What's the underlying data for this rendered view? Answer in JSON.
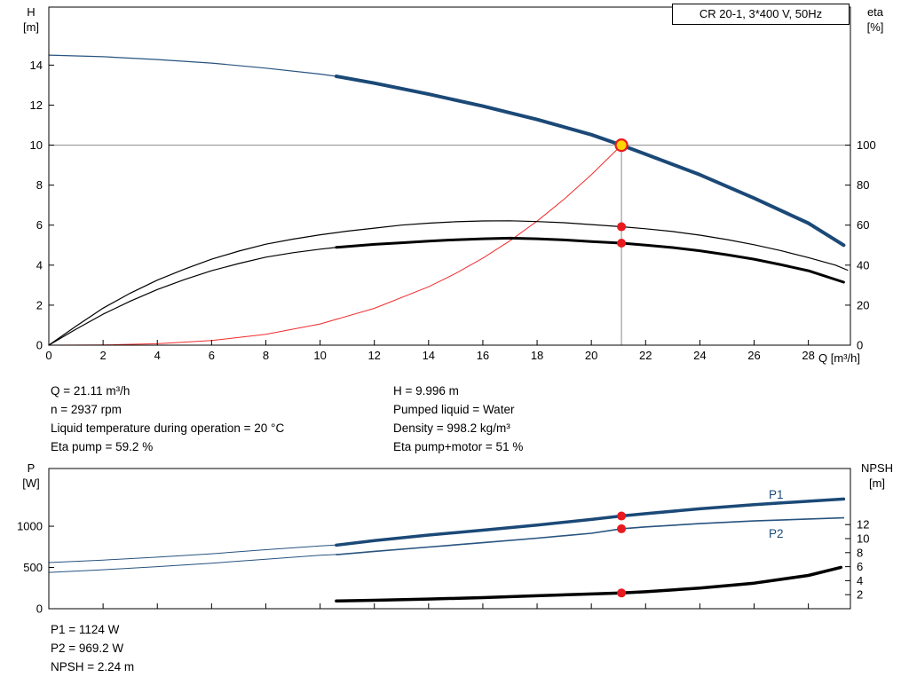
{
  "title_box": "CR 20-1, 3*400 V, 50Hz",
  "colors": {
    "curve_blue": "#1b4977",
    "curve_blue_thin": "#27537f",
    "curve_black": "#000000",
    "curve_red": "#ef2b2d",
    "duty_yellow": "#ffd400",
    "dot_red": "#e8191f",
    "guide_gray": "#8a8a8a"
  },
  "axis_labels": {
    "top_left_1": "H",
    "top_left_2": "[m]",
    "top_right_1": "eta",
    "top_right_2": "[%]",
    "x": "Q [m³/h]",
    "bottom_left_1": "P",
    "bottom_left_2": "[W]",
    "bottom_right_1": "NPSH",
    "bottom_right_2": "[m]"
  },
  "info": {
    "left": [
      "Q = 21.11 m³/h",
      "n = 2937 rpm",
      "Liquid temperature during operation = 20 °C",
      "Eta pump = 59.2 %"
    ],
    "right": [
      "H = 9.996 m",
      "Pumped liquid = Water",
      "Density = 998.2 kg/m³",
      "Eta pump+motor = 51 %"
    ],
    "bottom": [
      "P1 = 1124 W",
      "P2 = 969.2 W",
      "NPSH = 2.24 m"
    ]
  },
  "chart_data": [
    {
      "type": "line",
      "name": "head-and-efficiency-chart",
      "title": "CR 20-1, 3*400 V, 50Hz",
      "xlabel": "Q [m³/h]",
      "ylabel_left": "H [m]",
      "ylabel_right": "eta [%]",
      "xlim": [
        0,
        29.55
      ],
      "ylim_left": [
        0,
        16.9
      ],
      "ylim_right": [
        0,
        169
      ],
      "x_ticks": [
        0,
        2,
        4,
        6,
        8,
        10,
        12,
        14,
        16,
        18,
        20,
        22,
        24,
        26,
        28
      ],
      "x_tick_labels": true,
      "y_ticks_left": [
        0,
        2,
        4,
        6,
        8,
        10,
        12,
        14
      ],
      "y_ticks_right": [
        0,
        20,
        40,
        60,
        80,
        100
      ],
      "guides": [
        {
          "type": "h",
          "value": 9.996,
          "color": "#8a8a8a"
        },
        {
          "type": "v",
          "q": 21.11,
          "from": 0,
          "to": 9.996,
          "color": "#8a8a8a"
        }
      ],
      "series": [
        {
          "id": "qh-curve-full",
          "name": "Q-H curve full range",
          "axis": "left",
          "color": "#27537f",
          "width": 1.2,
          "points": [
            [
              0,
              14.5
            ],
            [
              2,
              14.42
            ],
            [
              4,
              14.28
            ],
            [
              6,
              14.1
            ],
            [
              8,
              13.85
            ],
            [
              10,
              13.55
            ],
            [
              10.6,
              13.44
            ],
            [
              12,
              13.1
            ],
            [
              14,
              12.55
            ],
            [
              16,
              11.95
            ],
            [
              18,
              11.28
            ],
            [
              20,
              10.52
            ],
            [
              21.11,
              9.996
            ],
            [
              22,
              9.55
            ],
            [
              24,
              8.52
            ],
            [
              26,
              7.35
            ],
            [
              28,
              6.1
            ],
            [
              29.3,
              5.0
            ]
          ]
        },
        {
          "id": "qh-curve-selected",
          "name": "Q-H curve selected range",
          "axis": "left",
          "color": "#1b4977",
          "width": 4,
          "points": [
            [
              10.6,
              13.44
            ],
            [
              12,
              13.1
            ],
            [
              14,
              12.55
            ],
            [
              16,
              11.95
            ],
            [
              18,
              11.28
            ],
            [
              20,
              10.52
            ],
            [
              21.11,
              9.996
            ],
            [
              22,
              9.55
            ],
            [
              24,
              8.52
            ],
            [
              26,
              7.35
            ],
            [
              28,
              6.1
            ],
            [
              29.3,
              5.0
            ]
          ]
        },
        {
          "id": "affinity-curve",
          "name": "system curve to duty point",
          "axis": "left",
          "color": "#ef2b2d",
          "width": 1,
          "points": [
            [
              0,
              0
            ],
            [
              2,
              0.01
            ],
            [
              4,
              0.07
            ],
            [
              6,
              0.23
            ],
            [
              8,
              0.54
            ],
            [
              10,
              1.06
            ],
            [
              12,
              1.84
            ],
            [
              14,
              2.92
            ],
            [
              15,
              3.59
            ],
            [
              16,
              4.35
            ],
            [
              17,
              5.22
            ],
            [
              18,
              6.2
            ],
            [
              19,
              7.3
            ],
            [
              20,
              8.52
            ],
            [
              21.11,
              9.996
            ]
          ]
        },
        {
          "id": "eta-pump-curve",
          "name": "Eta pump",
          "axis": "right",
          "color": "#000000",
          "width": 1.2,
          "points": [
            [
              0,
              0
            ],
            [
              1,
              9.5
            ],
            [
              2,
              18.5
            ],
            [
              3,
              26
            ],
            [
              4,
              32.5
            ],
            [
              5,
              38
            ],
            [
              6,
              43
            ],
            [
              7,
              47
            ],
            [
              8,
              50.5
            ],
            [
              9,
              53
            ],
            [
              10,
              55.2
            ],
            [
              11,
              57
            ],
            [
              12,
              58.5
            ],
            [
              13,
              60
            ],
            [
              14,
              61
            ],
            [
              15,
              61.7
            ],
            [
              16,
              62.1
            ],
            [
              17,
              62.2
            ],
            [
              18,
              61.8
            ],
            [
              19,
              61.2
            ],
            [
              20,
              60.3
            ],
            [
              21.11,
              59.2
            ],
            [
              22,
              58.2
            ],
            [
              23,
              56.8
            ],
            [
              24,
              55
            ],
            [
              25,
              52.8
            ],
            [
              26,
              50.2
            ],
            [
              27,
              47.2
            ],
            [
              28,
              43.8
            ],
            [
              29,
              40
            ],
            [
              29.45,
              37.5
            ]
          ]
        },
        {
          "id": "eta-pump-motor-full",
          "name": "Eta pump+motor full range",
          "axis": "right",
          "color": "#000000",
          "width": 1.2,
          "points": [
            [
              0,
              0
            ],
            [
              1,
              8
            ],
            [
              2,
              15.5
            ],
            [
              3,
              22
            ],
            [
              4,
              27.8
            ],
            [
              5,
              32.8
            ],
            [
              6,
              37.2
            ],
            [
              7,
              40.8
            ],
            [
              8,
              44
            ],
            [
              9,
              46.2
            ],
            [
              10,
              48
            ],
            [
              10.7,
              49
            ]
          ]
        },
        {
          "id": "eta-pump-motor-selected",
          "name": "Eta pump+motor selected range",
          "axis": "right",
          "color": "#000000",
          "width": 3,
          "points": [
            [
              10.6,
              48.9
            ],
            [
              12,
              50.4
            ],
            [
              13,
              51.2
            ],
            [
              14,
              52
            ],
            [
              15,
              52.7
            ],
            [
              16,
              53.2
            ],
            [
              17,
              53.5
            ],
            [
              18,
              53.2
            ],
            [
              19,
              52.6
            ],
            [
              20,
              51.8
            ],
            [
              21.11,
              51
            ],
            [
              22,
              50
            ],
            [
              23,
              48.8
            ],
            [
              24,
              47.2
            ],
            [
              25,
              45.2
            ],
            [
              26,
              43
            ],
            [
              27,
              40.2
            ],
            [
              28,
              37.2
            ],
            [
              29.3,
              31.5
            ]
          ]
        }
      ],
      "markers": [
        {
          "q": 21.11,
          "value": 9.996,
          "axis": "left",
          "kind": "duty",
          "name": "duty-point"
        },
        {
          "q": 21.11,
          "value": 59.2,
          "axis": "right",
          "kind": "dot",
          "name": "eta-pump-point"
        },
        {
          "q": 21.11,
          "value": 51,
          "axis": "right",
          "kind": "dot",
          "name": "eta-pump-motor-point"
        }
      ],
      "duty_point": {
        "q": 21.11,
        "h": 9.996,
        "eta_pump": 59.2,
        "eta_pump_motor": 51
      }
    },
    {
      "type": "line",
      "name": "power-and-npsh-chart",
      "ylabel_left": "P [W]",
      "ylabel_right": "NPSH [m]",
      "xlim": [
        0,
        29.55
      ],
      "ylim_left": [
        0,
        1700
      ],
      "ylim_right": [
        0,
        20
      ],
      "x_ticks": [
        0,
        2,
        4,
        6,
        8,
        10,
        12,
        14,
        16,
        18,
        20,
        22,
        24,
        26,
        28
      ],
      "x_tick_labels": false,
      "y_ticks_left": [
        0,
        500,
        1000
      ],
      "y_ticks_right": [
        2,
        4,
        6,
        8,
        10,
        12
      ],
      "guides": [],
      "series": [
        {
          "id": "p1-curve-full",
          "name": "P1 full range",
          "axis": "left",
          "color": "#27537f",
          "width": 1,
          "points": [
            [
              0,
              560
            ],
            [
              2,
              590
            ],
            [
              4,
              625
            ],
            [
              6,
              666
            ],
            [
              8,
              715
            ],
            [
              10,
              762
            ],
            [
              10.7,
              775
            ]
          ]
        },
        {
          "id": "p1-curve-selected",
          "name": "P1 selected range",
          "axis": "left",
          "color": "#1b4977",
          "width": 3.5,
          "points": [
            [
              10.6,
              770
            ],
            [
              12,
              825
            ],
            [
              14,
              893
            ],
            [
              16,
              952
            ],
            [
              18,
              1015
            ],
            [
              20,
              1082
            ],
            [
              21.11,
              1124
            ],
            [
              22,
              1152
            ],
            [
              24,
              1212
            ],
            [
              26,
              1262
            ],
            [
              28,
              1303
            ],
            [
              29.3,
              1330
            ]
          ]
        },
        {
          "id": "p2-curve-full",
          "name": "P2 full range",
          "axis": "left",
          "color": "#27537f",
          "width": 1,
          "points": [
            [
              0,
              440
            ],
            [
              2,
              472
            ],
            [
              4,
              510
            ],
            [
              6,
              552
            ],
            [
              8,
              600
            ],
            [
              10,
              648
            ],
            [
              10.7,
              660
            ]
          ]
        },
        {
          "id": "p2-curve",
          "name": "P2 curve",
          "axis": "left",
          "color": "#27537f",
          "width": 1.6,
          "points": [
            [
              10.6,
              655
            ],
            [
              12,
              695
            ],
            [
              14,
              748
            ],
            [
              16,
              800
            ],
            [
              18,
              855
            ],
            [
              20,
              915
            ],
            [
              21.11,
              969.2
            ],
            [
              22,
              992
            ],
            [
              24,
              1032
            ],
            [
              26,
              1064
            ],
            [
              28,
              1088
            ],
            [
              29.3,
              1102
            ]
          ]
        },
        {
          "id": "npsh-curve",
          "name": "NPSH curve",
          "axis": "right",
          "color": "#000000",
          "width": 3.5,
          "points": [
            [
              10.6,
              1.1
            ],
            [
              12,
              1.2
            ],
            [
              14,
              1.38
            ],
            [
              16,
              1.58
            ],
            [
              18,
              1.85
            ],
            [
              20,
              2.1
            ],
            [
              21.11,
              2.24
            ],
            [
              22,
              2.42
            ],
            [
              24,
              2.95
            ],
            [
              26,
              3.65
            ],
            [
              28,
              4.75
            ],
            [
              29.2,
              5.9
            ]
          ]
        }
      ],
      "markers": [
        {
          "q": 21.11,
          "value": 1124,
          "axis": "left",
          "kind": "dot",
          "name": "p1-point"
        },
        {
          "q": 21.11,
          "value": 969.2,
          "axis": "left",
          "kind": "dot",
          "name": "p2-point"
        },
        {
          "q": 21.11,
          "value": 2.24,
          "axis": "right",
          "kind": "dot",
          "name": "npsh-point"
        }
      ],
      "curve_labels": [
        "P1",
        "P2"
      ],
      "duty_point": {
        "q": 21.11,
        "p1_w": 1124,
        "p2_w": 969.2,
        "npsh_m": 2.24
      }
    }
  ]
}
